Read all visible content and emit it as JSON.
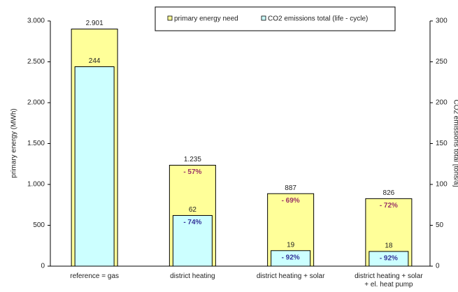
{
  "chart_data": {
    "type": "bar",
    "categories": [
      [
        "reference = gas"
      ],
      [
        "district heating"
      ],
      [
        "district heating + solar"
      ],
      [
        "district heating + solar",
        "+ el. heat pump"
      ]
    ],
    "y_label": "primary energy (MWh)",
    "y2_label": "CO2 emissions total [tons/a]",
    "ylim": [
      0,
      3000
    ],
    "yticks": [
      0,
      500,
      {
        "value": 1000,
        "label": "1.000"
      },
      {
        "value": 1500,
        "label": "1.500"
      },
      {
        "value": 2000,
        "label": "2.000"
      },
      {
        "value": 2500,
        "label": "2.500"
      },
      {
        "value": 3000,
        "label": "3.000"
      }
    ],
    "y2lim": [
      0,
      300
    ],
    "y2ticks": [
      0,
      50,
      100,
      150,
      200,
      250,
      300
    ],
    "series": [
      {
        "name": "primary energy need",
        "color": "#ffff99",
        "values": [
          2901,
          1235,
          887,
          826
        ],
        "value_labels": [
          "2.901",
          "1.235",
          "887",
          "826"
        ],
        "reduction_labels": [
          null,
          "- 57%",
          "- 69%",
          "- 72%"
        ],
        "reduction_color": "#993366"
      },
      {
        "name": "CO2 emissions total (life - cycle)",
        "color": "#ccffff",
        "axis": "y2",
        "values": [
          244,
          62,
          19,
          18
        ],
        "reduction_labels": [
          null,
          "- 74%",
          "- 92%",
          "- 92%"
        ],
        "reduction_color": "#333399"
      }
    ]
  }
}
